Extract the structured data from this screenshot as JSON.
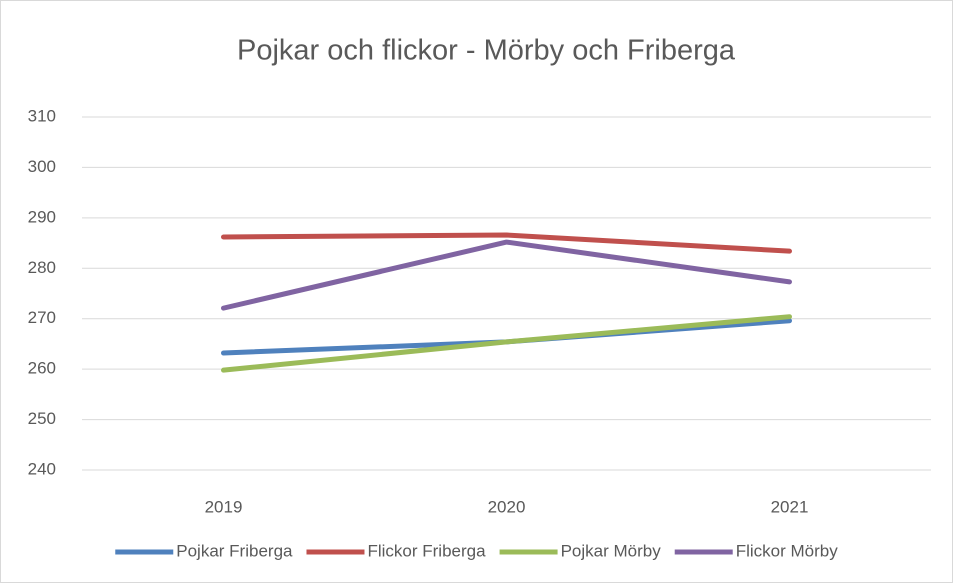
{
  "chart_data": {
    "type": "line",
    "title": "Pojkar och flickor - Mörby och Friberga",
    "categories": [
      "2019",
      "2020",
      "2021"
    ],
    "series": [
      {
        "name": "Pojkar Friberga",
        "color": "#4f81bd",
        "values": [
          263.2,
          265.4,
          269.6
        ]
      },
      {
        "name": "Flickor Friberga",
        "color": "#c0504d",
        "values": [
          286.2,
          286.6,
          283.4
        ]
      },
      {
        "name": "Pojkar Mörby",
        "color": "#9bbb59",
        "values": [
          259.8,
          265.4,
          270.4
        ]
      },
      {
        "name": "Flickor Mörby",
        "color": "#8064a2",
        "values": [
          272.1,
          285.2,
          277.3
        ]
      }
    ],
    "ylim": [
      240,
      310
    ],
    "yticks": [
      240,
      250,
      260,
      270,
      280,
      290,
      300,
      310
    ],
    "grid": true,
    "legend": "bottom"
  }
}
